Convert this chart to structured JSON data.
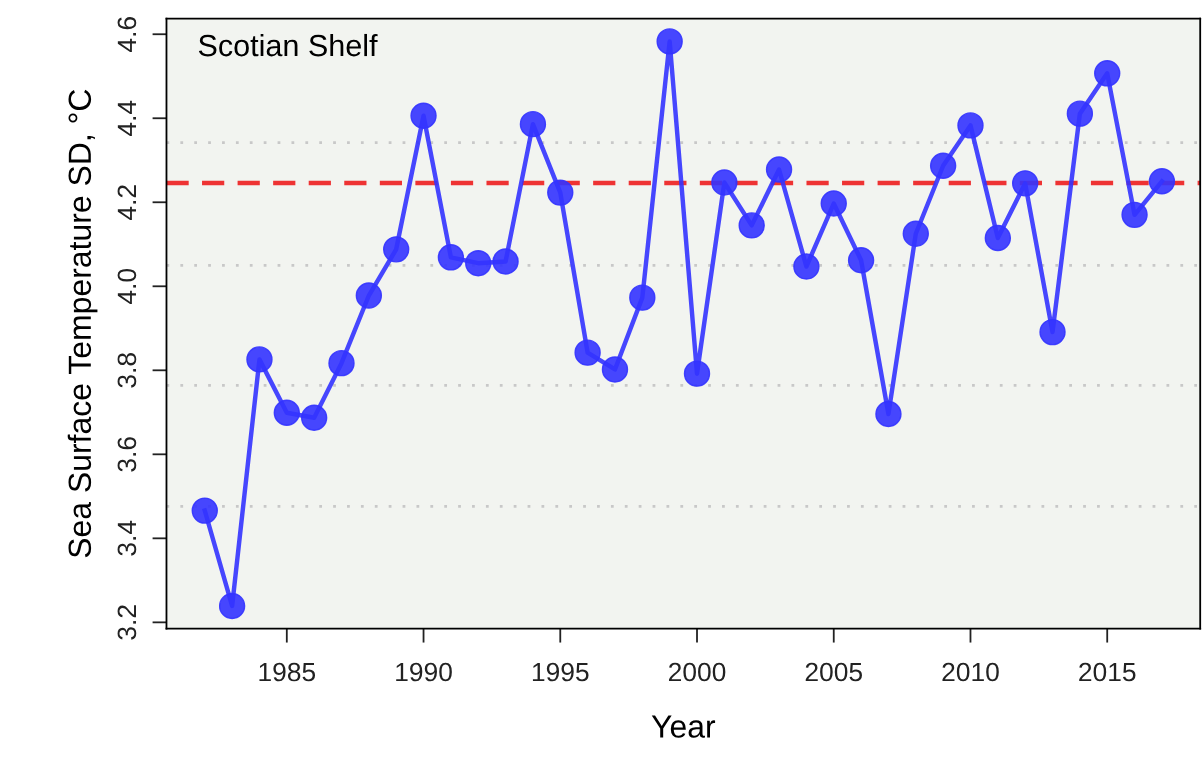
{
  "chart_data": {
    "type": "line",
    "title": "Scotian Shelf",
    "xlabel": "Year",
    "ylabel": "Sea Surface Temperature SD, °C",
    "x": [
      1982,
      1983,
      1984,
      1985,
      1986,
      1987,
      1988,
      1989,
      1990,
      1991,
      1992,
      1993,
      1994,
      1995,
      1996,
      1997,
      1998,
      1999,
      2000,
      2001,
      2002,
      2003,
      2004,
      2005,
      2006,
      2007,
      2008,
      2009,
      2010,
      2011,
      2012,
      2013,
      2014,
      2015,
      2016,
      2017
    ],
    "series": [
      {
        "color": "#3333ff",
        "values": [
          3.466,
          3.239,
          3.826,
          3.699,
          3.687,
          3.817,
          3.978,
          4.088,
          4.406,
          4.069,
          4.055,
          4.059,
          4.386,
          4.223,
          3.842,
          3.802,
          3.973,
          4.583,
          3.792,
          4.247,
          4.145,
          4.278,
          4.047,
          4.197,
          4.062,
          3.696,
          4.125,
          4.287,
          4.383,
          4.115,
          4.245,
          3.891,
          4.411,
          4.507,
          4.17,
          4.25
        ]
      }
    ],
    "marker": "circle",
    "line_style": "solid",
    "grid": false,
    "legend": false,
    "xlim": [
      1980.6,
      2018.4
    ],
    "xticks": [
      1985,
      1990,
      1995,
      2000,
      2005,
      2010,
      2015
    ],
    "ylim": [
      3.185,
      4.637
    ],
    "yticks": [
      {
        "value": 3.2,
        "label": "3.2"
      },
      {
        "value": 3.4,
        "label": "3.4"
      },
      {
        "value": 3.6,
        "label": "3.6"
      },
      {
        "value": 3.8,
        "label": "3.8"
      },
      {
        "value": 4.0,
        "label": "4.0"
      },
      {
        "value": 4.2,
        "label": "4.2"
      },
      {
        "value": 4.4,
        "label": "4.4"
      },
      {
        "value": 4.6,
        "label": "4.6"
      }
    ],
    "ref_lines": [
      {
        "axis": "y",
        "value": 4.246,
        "color": "#ee3333",
        "line_style": "dashed"
      },
      {
        "axis": "y",
        "value": 4.342,
        "color": "#c8c8c8",
        "line_style": "dotted"
      },
      {
        "axis": "y",
        "value": 4.05,
        "color": "#c8c8c8",
        "line_style": "dotted"
      },
      {
        "axis": "y",
        "value": 3.764,
        "color": "#c8c8c8",
        "line_style": "dotted"
      },
      {
        "axis": "y",
        "value": 3.476,
        "color": "#c8c8c8",
        "line_style": "dotted"
      }
    ]
  }
}
